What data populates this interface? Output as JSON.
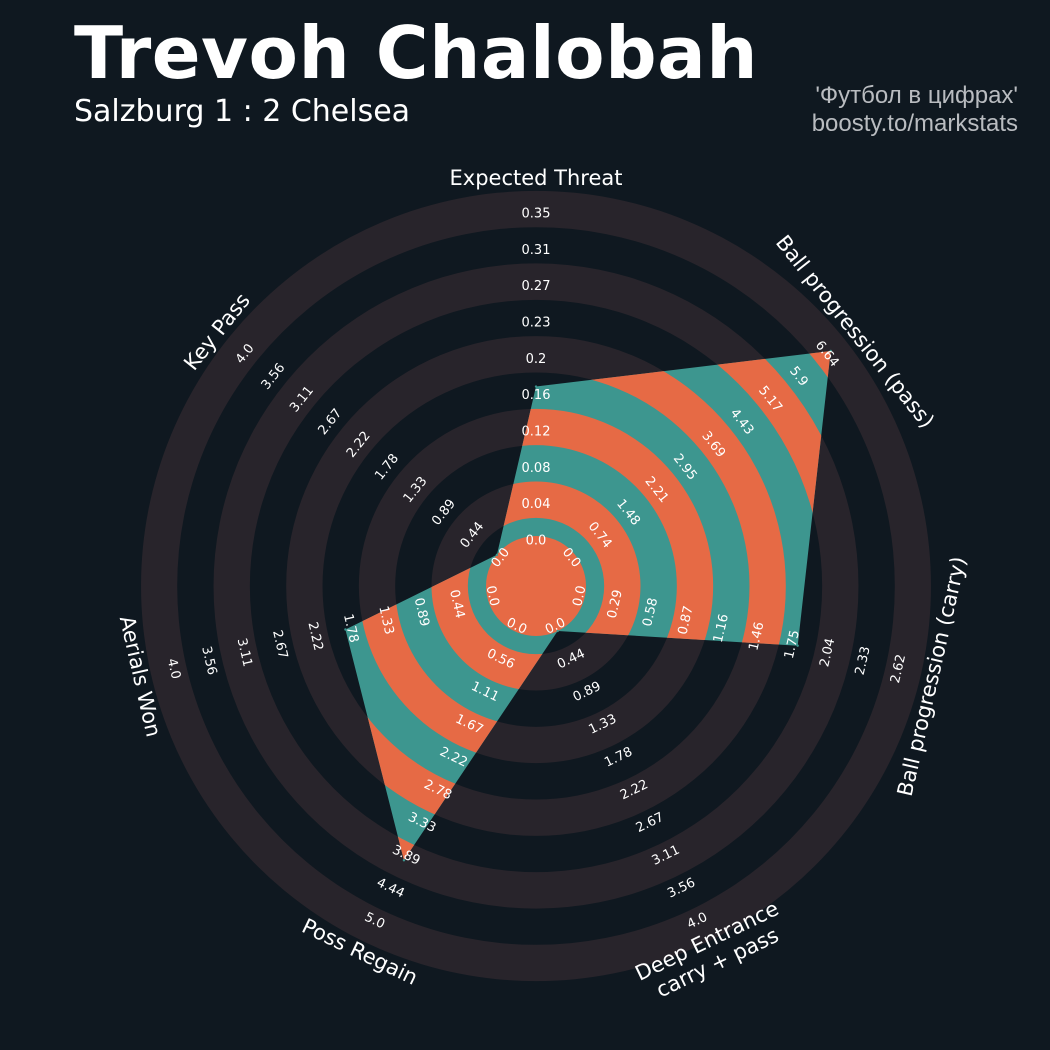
{
  "header": {
    "title": "Trevoh Chalobah",
    "subtitle": "Salzburg 1 : 2 Chelsea",
    "credit_line1": "'Футбол в цифрах'",
    "credit_line2": "boosty.to/markstats"
  },
  "colors": {
    "background": "#0f1820",
    "ring_band": "#28242b",
    "fill_teal": "#3d968f",
    "fill_orange": "#e66a45",
    "text": "#ffffff",
    "credit_text": "#b9bcc0"
  },
  "chart_data": {
    "type": "radar",
    "player": "Trevoh Chalobah",
    "params": [
      "Expected Threat",
      "Ball progression (pass)",
      "Ball progression (carry)",
      "Deep Entrance\ncarry + pass",
      "Poss Regain",
      "Aerials Won",
      "Key Pass"
    ],
    "values": [
      0.16,
      6.64,
      1.75,
      0.0,
      3.89,
      1.78,
      0.0
    ],
    "ranges": [
      [
        0.0,
        0.35
      ],
      [
        0.0,
        6.64
      ],
      [
        0.0,
        2.62
      ],
      [
        0.0,
        4.0
      ],
      [
        0.0,
        5.0
      ],
      [
        0.0,
        4.0
      ],
      [
        0.0,
        4.0
      ]
    ],
    "tick_labels": [
      [
        "0.0",
        "0.04",
        "0.08",
        "0.12",
        "0.16",
        "0.2",
        "0.23",
        "0.27",
        "0.31",
        "0.35"
      ],
      [
        "0.0",
        "0.74",
        "1.48",
        "2.21",
        "2.95",
        "3.69",
        "4.43",
        "5.17",
        "5.9",
        "6.64"
      ],
      [
        "0.0",
        "0.29",
        "0.58",
        "0.87",
        "1.16",
        "1.46",
        "1.75",
        "2.04",
        "2.33",
        "2.62"
      ],
      [
        "0.0",
        "0.44",
        "0.89",
        "1.33",
        "1.78",
        "2.22",
        "2.67",
        "3.11",
        "3.56",
        "4.0"
      ],
      [
        "0.0",
        "0.56",
        "1.11",
        "1.67",
        "2.22",
        "2.78",
        "3.33",
        "3.89",
        "4.44",
        "5.0"
      ],
      [
        "0.0",
        "0.44",
        "0.89",
        "1.33",
        "1.78",
        "2.22",
        "2.67",
        "3.11",
        "3.56",
        "4.0"
      ],
      [
        "0.0",
        "0.44",
        "0.89",
        "1.33",
        "1.78",
        "2.22",
        "2.67",
        "3.11",
        "3.56",
        "4.0"
      ]
    ]
  }
}
